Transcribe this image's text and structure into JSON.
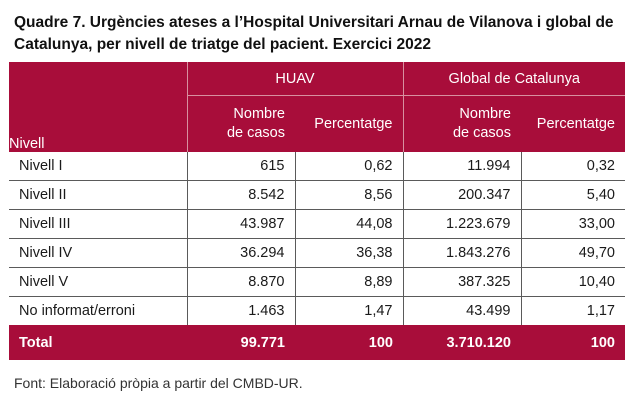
{
  "title": "Quadre 7. Urgències ateses a l’Hospital Universitari Arnau de Vilanova i global de Catalunya, per nivell de triatge del pacient. Exercici 2022",
  "table": {
    "group_headers": [
      "HUAV",
      "Global de Catalunya"
    ],
    "columns": {
      "level": "Nivell",
      "cases_line1": "Nombre",
      "cases_line2": "de casos",
      "percent": "Percentatge"
    },
    "rows": [
      {
        "level": "Nivell I",
        "huav_cases": "615",
        "huav_pct": "0,62",
        "cat_cases": "11.994",
        "cat_pct": "0,32"
      },
      {
        "level": "Nivell II",
        "huav_cases": "8.542",
        "huav_pct": "8,56",
        "cat_cases": "200.347",
        "cat_pct": "5,40"
      },
      {
        "level": "Nivell III",
        "huav_cases": "43.987",
        "huav_pct": "44,08",
        "cat_cases": "1.223.679",
        "cat_pct": "33,00"
      },
      {
        "level": "Nivell IV",
        "huav_cases": "36.294",
        "huav_pct": "36,38",
        "cat_cases": "1.843.276",
        "cat_pct": "49,70"
      },
      {
        "level": "Nivell V",
        "huav_cases": "8.870",
        "huav_pct": "8,89",
        "cat_cases": "387.325",
        "cat_pct": "10,40"
      },
      {
        "level": "No informat/erroni",
        "huav_cases": "1.463",
        "huav_pct": "1,47",
        "cat_cases": "43.499",
        "cat_pct": "1,17"
      }
    ],
    "total": {
      "level": "Total",
      "huav_cases": "99.771",
      "huav_pct": "100",
      "cat_cases": "3.710.120",
      "cat_pct": "100"
    }
  },
  "source": "Font: Elaboració pròpia a partir del CMBD-UR.",
  "colors": {
    "header_bg": "#a80d3a"
  }
}
